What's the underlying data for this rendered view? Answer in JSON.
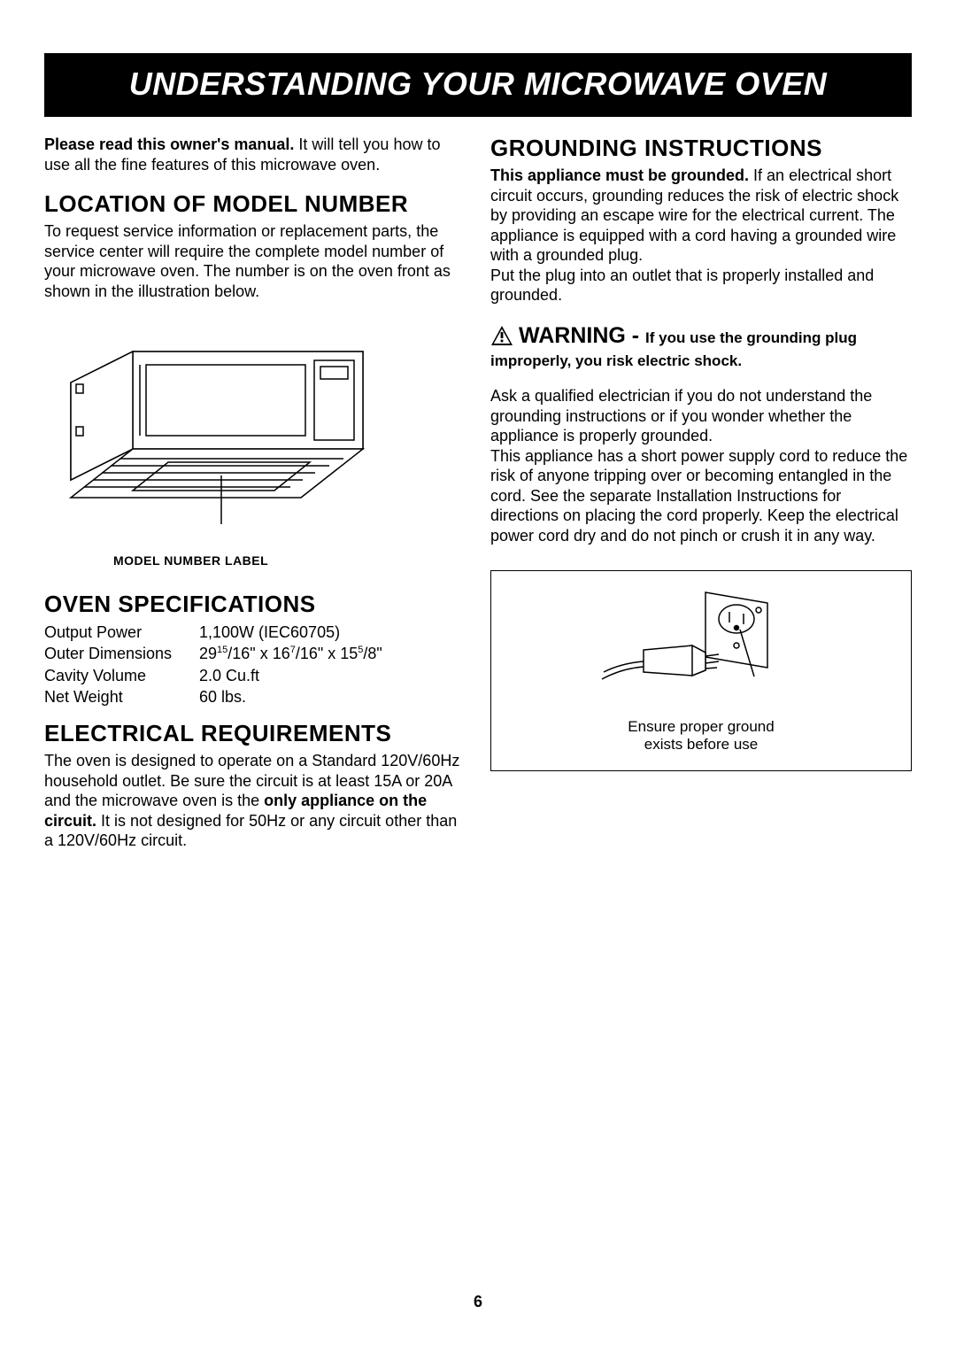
{
  "banner_title": "UNDERSTANDING YOUR MICROWAVE OVEN",
  "page_number": "6",
  "left": {
    "intro_lead": "Please read this owner's manual.",
    "intro_rest": " It will tell you how to use all the fine features of this microwave oven.",
    "loc_heading": "LOCATION OF MODEL NUMBER",
    "loc_text": "To request service information or replacement parts, the service center will require the complete model number of your microwave oven. The number is on the oven front as shown in the illustration below.",
    "fig1_label": "MODEL NUMBER LABEL",
    "spec_heading": "OVEN SPECIFICATIONS",
    "specs": {
      "r0_label": "Output Power",
      "r0_value": "1,100W (IEC60705)",
      "r1_label": "Outer Dimensions",
      "r1_value_html": "29<sup>15</sup>/16\" x 16<sup>7</sup>/16\" x 15<sup>5</sup>/8\"",
      "r2_label": "Cavity Volume",
      "r2_value": "2.0 Cu.ft",
      "r3_label": "Net Weight",
      "r3_value": "60 lbs."
    },
    "elec_heading": "ELECTRICAL REQUIREMENTS",
    "elec_pre": "The oven is designed to operate on a Standard 120V/60Hz household outlet. Be sure the circuit is at least 15A or 20A and the microwave oven is the ",
    "elec_bold": "only appliance on the circuit.",
    "elec_post": " It is not designed for 50Hz or any circuit other than a 120V/60Hz circuit."
  },
  "right": {
    "ground_heading": "GROUNDING INSTRUCTIONS",
    "ground_lead": "This appliance must be grounded.",
    "ground_rest": " If an electrical short circuit occurs, grounding reduces the risk of electric shock by providing an escape wire for the electrical current. The appliance is equipped with a cord having a grounded wire with a grounded plug.",
    "ground_p2": "Put the plug into an outlet that is properly installed and grounded.",
    "warn_word": "WARNING",
    "warn_dash": " - ",
    "warn_rest": "If you use the grounding plug improperly, you risk electric shock.",
    "after_warn_p1": "Ask a qualified electrician if you do not understand the grounding instructions or if you wonder whether the appliance is properly grounded.",
    "after_warn_p2": "This appliance has a short power supply cord to reduce the risk of anyone tripping over or becoming entangled in the cord. See the separate Installation Instructions for directions on placing the cord properly. Keep the electrical power cord dry and do not pinch or crush it in any way.",
    "fig2_cap_l1": "Ensure proper ground",
    "fig2_cap_l2": "exists before use"
  },
  "style": {
    "banner_bg": "#000000",
    "banner_fg": "#ffffff",
    "text_color": "#000000",
    "page_bg": "#ffffff",
    "heading_fontsize": 26,
    "body_fontsize": 18,
    "banner_fontsize": 36
  }
}
